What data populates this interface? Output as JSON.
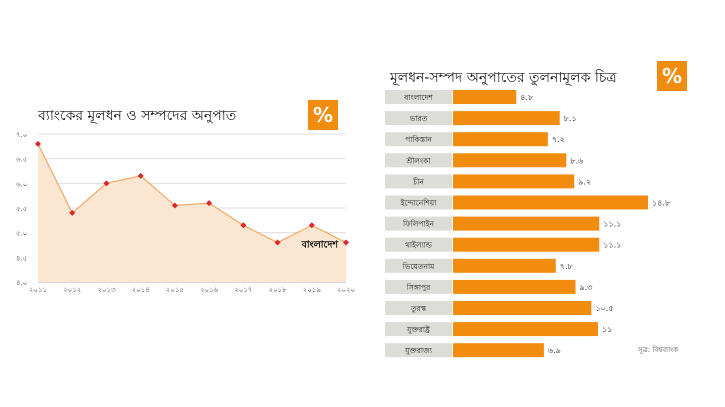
{
  "line_chart": {
    "title": "ব্যাংকের মূলধন ও সম্পদের অনুপাত",
    "badge": "%",
    "series_label": "বাংলাদেশ"
  },
  "bar_chart": {
    "title": "মূলধন-সম্পদ অনুপাতের তুলনামূলক চিত্র",
    "badge": "%",
    "source": "সূত্র: বিশ্বব্যাংক"
  },
  "colors": {
    "accent": "#f28c0f",
    "marker": "#d9262b",
    "area_fill": "#fbe7d1",
    "label_bg": "#dcdcd8"
  },
  "chart_data": [
    {
      "type": "area",
      "title": "ব্যাংকের মূলধন ও সম্পদের অনুপাত",
      "x": [
        "২০১১",
        "২০১২",
        "২০১৩",
        "২০১৪",
        "২০১৫",
        "২০১৬",
        "২০১৭",
        "২০১৮",
        "২০১৯",
        "২০২০"
      ],
      "values": [
        6.8,
        5.4,
        6.0,
        6.15,
        5.55,
        5.6,
        5.15,
        4.8,
        5.15,
        4.8
      ],
      "y_ticks": [
        "৪.০",
        "৪.৫",
        "৫.০",
        "৫.৫",
        "৬.০",
        "৬.৫",
        "৭.০"
      ],
      "ylim": [
        4.0,
        7.0
      ],
      "grid": true,
      "series_label": "বাংলাদেশ"
    },
    {
      "type": "bar",
      "orientation": "horizontal",
      "title": "মূলধন-সম্পদ অনুপাতের তুলনামূলক চিত্র",
      "categories": [
        "বাংলাদেশ",
        "ভারত",
        "পাকিস্তান",
        "শ্রীলংকা",
        "চীন",
        "ইন্দোনেশিয়া",
        "ফিলিপাইন",
        "থাইল্যান্ড",
        "ভিয়েতনাম",
        "সিঙ্গাপুর",
        "তুরস্ক",
        "যুক্তরাষ্ট্র",
        "যুক্তরাজ্য"
      ],
      "values": [
        4.8,
        8.1,
        7.2,
        8.6,
        9.2,
        14.8,
        11.1,
        11.1,
        7.8,
        9.3,
        10.5,
        11,
        6.9
      ],
      "value_labels": [
        "৪.৮",
        "৮.১",
        "৭.২",
        "৮.৬",
        "৯.২",
        "১৪.৮",
        "১১.১",
        "১১.১",
        "৭.৮",
        "৯.৩",
        "১০.৫",
        "১১",
        "৬.৯"
      ]
    }
  ]
}
